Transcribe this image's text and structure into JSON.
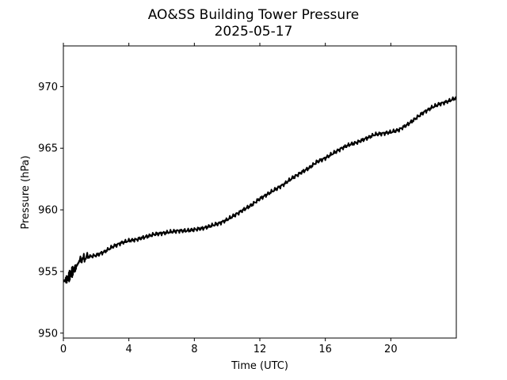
{
  "chart_data": {
    "type": "line",
    "title": "AO&SS Building Tower Pressure",
    "subtitle": "2025-05-17",
    "xlabel": "Time (UTC)",
    "ylabel": "Pressure (hPa)",
    "xlim": [
      0,
      24
    ],
    "ylim": [
      949.6,
      973.3
    ],
    "x_ticks": [
      0,
      4,
      8,
      12,
      16,
      20
    ],
    "y_ticks": [
      950,
      955,
      960,
      965,
      970
    ],
    "grid": false,
    "line_color": "#000000",
    "series": [
      {
        "x": [
          0,
          0.25,
          0.5,
          0.75,
          1.0,
          1.5,
          2.0,
          2.5,
          3.0,
          3.5,
          4.0,
          4.5,
          5.0,
          5.5,
          6.0,
          6.5,
          7.0,
          7.5,
          8.0,
          8.5,
          9.0,
          9.5,
          10.0,
          10.5,
          11.0,
          11.5,
          12.0,
          12.5,
          13.0,
          13.5,
          14.0,
          14.5,
          15.0,
          15.5,
          16.0,
          16.5,
          17.0,
          17.5,
          18.0,
          18.5,
          19.0,
          19.5,
          20.0,
          20.5,
          21.0,
          21.5,
          22.0,
          22.5,
          23.0,
          23.5,
          24.0
        ],
        "values": [
          954.2,
          954.4,
          954.9,
          955.3,
          955.9,
          956.2,
          956.3,
          956.6,
          957.0,
          957.3,
          957.5,
          957.6,
          957.8,
          958.0,
          958.1,
          958.2,
          958.3,
          958.3,
          958.4,
          958.5,
          958.7,
          958.9,
          959.2,
          959.6,
          960.0,
          960.4,
          960.9,
          961.3,
          961.7,
          962.1,
          962.6,
          963.0,
          963.4,
          963.9,
          964.2,
          964.6,
          965.0,
          965.3,
          965.5,
          965.8,
          966.1,
          966.2,
          966.3,
          966.5,
          966.9,
          967.4,
          967.9,
          968.3,
          968.6,
          968.8,
          969.1
        ]
      }
    ]
  }
}
